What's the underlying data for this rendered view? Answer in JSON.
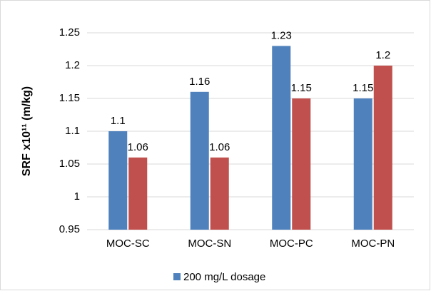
{
  "chart_data": {
    "type": "bar",
    "y_label": "SRF x10¹¹ (m/kg)",
    "categories": [
      "MOC-SC",
      "MOC-SN",
      "MOC-PC",
      "MOC-PN"
    ],
    "series": [
      {
        "name": "200 mg/L dosage",
        "color": "#4f81bd",
        "values": [
          1.1,
          1.16,
          1.23,
          1.15
        ]
      },
      {
        "color": "#c0504d",
        "values": [
          1.06,
          1.06,
          1.15,
          1.2
        ]
      }
    ],
    "ylim": [
      0.95,
      1.25
    ],
    "yticks": [
      0.95,
      1,
      1.05,
      1.1,
      1.15,
      1.2,
      1.25
    ],
    "grid": true,
    "legend": "bottom"
  }
}
